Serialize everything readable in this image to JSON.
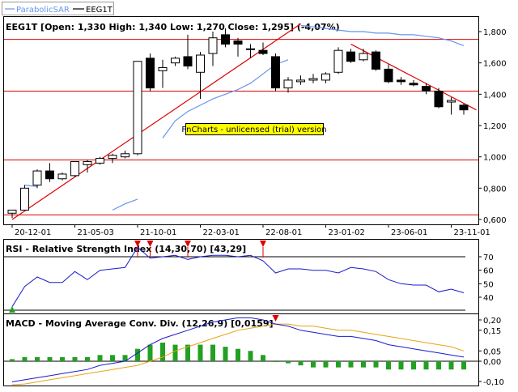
{
  "legend": {
    "sar_label": "ParabolicSAR",
    "price_label": "EEG1T"
  },
  "price_panel": {
    "header": "EEG1T [Open: 1,330  High: 1,340  Low: 1,270  Close: 1,295] (-4,07%)",
    "watermark": "FnCharts - unlicensed (trial) version",
    "y_ticks": [
      "1,800",
      "1,600",
      "1,400",
      "1,200",
      "1,000",
      "0,800",
      "0,600"
    ]
  },
  "rsi_panel": {
    "header": "RSI - Relative Strength Index (14,30,70) [43,29]",
    "y_ticks": [
      "70",
      "60",
      "50",
      "40"
    ]
  },
  "macd_panel": {
    "header": "MACD - Moving Average Conv. Div. (12,26,9) [0,0159]",
    "y_ticks": [
      "0,20",
      "0,15",
      "0,05",
      "0,00",
      "-0,10"
    ]
  },
  "x_ticks": [
    "20-12-01",
    "21-05-03",
    "21-10-01",
    "22-03-01",
    "22-08-01",
    "23-01-02",
    "23-06-01",
    "23-11-01"
  ],
  "colors": {
    "up_candle": "#ffffff",
    "down_candle": "#000000",
    "sar": "#6495ed",
    "trendline": "#e00000",
    "rsi": "#1a1acc",
    "macd": "#1a1acc",
    "signal": "#e8a317",
    "histogram": "#22a022",
    "marker_red": "#e00000",
    "marker_green": "#22a022",
    "watermark_bg": "#ffff00"
  },
  "chart_data": [
    {
      "type": "candlestick",
      "title": "EEG1T",
      "ylim": [
        0.58,
        1.88
      ],
      "x": [
        "2020-12",
        "2021-01",
        "2021-02",
        "2021-03",
        "2021-04",
        "2021-05",
        "2021-06",
        "2021-07",
        "2021-08",
        "2021-09",
        "2021-10",
        "2021-11",
        "2021-12",
        "2022-01",
        "2022-02",
        "2022-03",
        "2022-04",
        "2022-05",
        "2022-06",
        "2022-07",
        "2022-08",
        "2022-09",
        "2022-10",
        "2022-11",
        "2022-12",
        "2023-01",
        "2023-02",
        "2023-03",
        "2023-04",
        "2023-05",
        "2023-06",
        "2023-07",
        "2023-08",
        "2023-09",
        "2023-10",
        "2023-11",
        "2023-12"
      ],
      "candles": [
        {
          "o": 0.64,
          "h": 0.66,
          "l": 0.61,
          "c": 0.66
        },
        {
          "o": 0.66,
          "h": 0.82,
          "l": 0.66,
          "c": 0.8
        },
        {
          "o": 0.82,
          "h": 0.92,
          "l": 0.8,
          "c": 0.91
        },
        {
          "o": 0.91,
          "h": 0.96,
          "l": 0.84,
          "c": 0.86
        },
        {
          "o": 0.86,
          "h": 0.9,
          "l": 0.85,
          "c": 0.89
        },
        {
          "o": 0.88,
          "h": 0.97,
          "l": 0.87,
          "c": 0.97
        },
        {
          "o": 0.95,
          "h": 0.98,
          "l": 0.9,
          "c": 0.97
        },
        {
          "o": 0.96,
          "h": 1.0,
          "l": 0.95,
          "c": 0.99
        },
        {
          "o": 0.99,
          "h": 1.02,
          "l": 0.96,
          "c": 1.01
        },
        {
          "o": 1.0,
          "h": 1.04,
          "l": 0.99,
          "c": 1.02
        },
        {
          "o": 1.02,
          "h": 1.61,
          "l": 1.01,
          "c": 1.61
        },
        {
          "o": 1.63,
          "h": 1.66,
          "l": 1.42,
          "c": 1.44
        },
        {
          "o": 1.55,
          "h": 1.62,
          "l": 1.44,
          "c": 1.57
        },
        {
          "o": 1.6,
          "h": 1.64,
          "l": 1.58,
          "c": 1.63
        },
        {
          "o": 1.64,
          "h": 1.78,
          "l": 1.56,
          "c": 1.58
        },
        {
          "o": 1.54,
          "h": 1.67,
          "l": 1.37,
          "c": 1.65
        },
        {
          "o": 1.66,
          "h": 1.8,
          "l": 1.58,
          "c": 1.76
        },
        {
          "o": 1.78,
          "h": 1.82,
          "l": 1.7,
          "c": 1.72
        },
        {
          "o": 1.74,
          "h": 1.76,
          "l": 1.64,
          "c": 1.72
        },
        {
          "o": 1.69,
          "h": 1.72,
          "l": 1.63,
          "c": 1.69
        },
        {
          "o": 1.68,
          "h": 1.73,
          "l": 1.65,
          "c": 1.66
        },
        {
          "o": 1.64,
          "h": 1.66,
          "l": 1.42,
          "c": 1.44
        },
        {
          "o": 1.44,
          "h": 1.51,
          "l": 1.41,
          "c": 1.49
        },
        {
          "o": 1.48,
          "h": 1.52,
          "l": 1.46,
          "c": 1.49
        },
        {
          "o": 1.49,
          "h": 1.53,
          "l": 1.47,
          "c": 1.5
        },
        {
          "o": 1.49,
          "h": 1.54,
          "l": 1.47,
          "c": 1.53
        },
        {
          "o": 1.54,
          "h": 1.7,
          "l": 1.53,
          "c": 1.68
        },
        {
          "o": 1.67,
          "h": 1.69,
          "l": 1.6,
          "c": 1.61
        },
        {
          "o": 1.62,
          "h": 1.69,
          "l": 1.61,
          "c": 1.66
        },
        {
          "o": 1.67,
          "h": 1.68,
          "l": 1.55,
          "c": 1.56
        },
        {
          "o": 1.56,
          "h": 1.59,
          "l": 1.47,
          "c": 1.48
        },
        {
          "o": 1.49,
          "h": 1.51,
          "l": 1.46,
          "c": 1.48
        },
        {
          "o": 1.47,
          "h": 1.49,
          "l": 1.45,
          "c": 1.46
        },
        {
          "o": 1.45,
          "h": 1.47,
          "l": 1.4,
          "c": 1.42
        },
        {
          "o": 1.42,
          "h": 1.44,
          "l": 1.31,
          "c": 1.32
        },
        {
          "o": 1.35,
          "h": 1.38,
          "l": 1.27,
          "c": 1.36
        },
        {
          "o": 1.33,
          "h": 1.34,
          "l": 1.27,
          "c": 1.3
        }
      ],
      "sar": [
        {
          "x": "2021-01",
          "y": 0.82
        },
        {
          "x": "2021-02",
          "y": 0.81
        },
        {
          "x": "2021-04",
          "y": 0.6
        },
        {
          "x": "2021-06",
          "y": 0.63
        },
        {
          "x": "2021-08",
          "y": 0.66
        },
        {
          "x": "2021-09",
          "y": 0.7
        },
        {
          "x": "2021-10",
          "y": 0.73
        },
        {
          "x": "2021-11",
          "y": 0.96
        },
        {
          "x": "2021-12",
          "y": 1.12
        },
        {
          "x": "2022-01",
          "y": 1.23
        },
        {
          "x": "2022-02",
          "y": 1.29
        },
        {
          "x": "2022-03",
          "y": 1.33
        },
        {
          "x": "2022-04",
          "y": 1.37
        },
        {
          "x": "2022-05",
          "y": 1.4
        },
        {
          "x": "2022-06",
          "y": 1.43
        },
        {
          "x": "2022-07",
          "y": 1.47
        },
        {
          "x": "2022-08",
          "y": 1.53
        },
        {
          "x": "2022-09",
          "y": 1.59
        },
        {
          "x": "2022-10",
          "y": 1.62
        },
        {
          "x": "2022-11",
          "y": 1.84
        },
        {
          "x": "2022-12",
          "y": 1.83
        },
        {
          "x": "2023-01",
          "y": 1.82
        },
        {
          "x": "2023-02",
          "y": 1.81
        },
        {
          "x": "2023-03",
          "y": 1.8
        },
        {
          "x": "2023-04",
          "y": 1.8
        },
        {
          "x": "2023-05",
          "y": 1.79
        },
        {
          "x": "2023-06",
          "y": 1.79
        },
        {
          "x": "2023-07",
          "y": 1.78
        },
        {
          "x": "2023-08",
          "y": 1.78
        },
        {
          "x": "2023-09",
          "y": 1.77
        },
        {
          "x": "2023-10",
          "y": 1.76
        },
        {
          "x": "2023-11",
          "y": 1.74
        },
        {
          "x": "2023-12",
          "y": 1.71
        }
      ],
      "horizontal_lines": [
        1.75,
        1.42,
        0.98,
        0.63
      ],
      "trendlines": [
        {
          "x1": "2020-12",
          "y1": 0.6,
          "x2": "2022-11",
          "y2": 1.85
        },
        {
          "x1": "2023-03",
          "y1": 1.72,
          "x2": "2024-01",
          "y2": 1.3
        }
      ]
    },
    {
      "type": "line",
      "title": "RSI - Relative Strength Index (14,30,70) [43,29]",
      "ylim": [
        33,
        77
      ],
      "levels": [
        70,
        30
      ],
      "x": [
        "2020-12",
        "2021-01",
        "2021-02",
        "2021-03",
        "2021-04",
        "2021-05",
        "2021-06",
        "2021-07",
        "2021-08",
        "2021-09",
        "2021-10",
        "2021-11",
        "2021-12",
        "2022-01",
        "2022-02",
        "2022-03",
        "2022-04",
        "2022-05",
        "2022-06",
        "2022-07",
        "2022-08",
        "2022-09",
        "2022-10",
        "2022-11",
        "2022-12",
        "2023-01",
        "2023-02",
        "2023-03",
        "2023-04",
        "2023-05",
        "2023-06",
        "2023-07",
        "2023-08",
        "2023-09",
        "2023-10",
        "2023-11",
        "2023-12"
      ],
      "values": [
        33,
        48,
        55,
        51,
        51,
        59,
        53,
        60,
        61,
        62,
        77,
        69,
        70,
        71,
        68,
        70,
        71,
        71,
        70,
        71,
        67,
        58,
        61,
        61,
        60,
        60,
        58,
        62,
        61,
        59,
        53,
        50,
        49,
        49,
        44,
        46,
        43.29
      ],
      "overbought_markers": [
        "2021-10",
        "2021-11",
        "2022-02",
        "2022-08"
      ],
      "oversold_markers": [
        "2020-12"
      ]
    },
    {
      "type": "line",
      "title": "MACD - Moving Average Conv. Div. (12,26,9) [0,0159]",
      "ylim": [
        -0.11,
        0.22
      ],
      "x": [
        "2020-12",
        "2021-01",
        "2021-02",
        "2021-03",
        "2021-04",
        "2021-05",
        "2021-06",
        "2021-07",
        "2021-08",
        "2021-09",
        "2021-10",
        "2021-11",
        "2021-12",
        "2022-01",
        "2022-02",
        "2022-03",
        "2022-04",
        "2022-05",
        "2022-06",
        "2022-07",
        "2022-08",
        "2022-09",
        "2022-10",
        "2022-11",
        "2022-12",
        "2023-01",
        "2023-02",
        "2023-03",
        "2023-04",
        "2023-05",
        "2023-06",
        "2023-07",
        "2023-08",
        "2023-09",
        "2023-10",
        "2023-11",
        "2023-12"
      ],
      "series": [
        {
          "name": "MACD",
          "values": [
            -0.1,
            -0.09,
            -0.08,
            -0.07,
            -0.06,
            -0.05,
            -0.04,
            -0.02,
            -0.01,
            0.0,
            0.04,
            0.08,
            0.11,
            0.13,
            0.15,
            0.17,
            0.19,
            0.2,
            0.21,
            0.21,
            0.2,
            0.18,
            0.17,
            0.15,
            0.14,
            0.13,
            0.12,
            0.12,
            0.11,
            0.1,
            0.08,
            0.07,
            0.06,
            0.05,
            0.04,
            0.03,
            0.02
          ]
        },
        {
          "name": "Signal",
          "values": [
            -0.12,
            -0.11,
            -0.1,
            -0.09,
            -0.08,
            -0.07,
            -0.06,
            -0.05,
            -0.04,
            -0.03,
            -0.02,
            0.0,
            0.02,
            0.05,
            0.07,
            0.09,
            0.11,
            0.13,
            0.15,
            0.16,
            0.17,
            0.18,
            0.18,
            0.17,
            0.17,
            0.16,
            0.15,
            0.15,
            0.14,
            0.13,
            0.12,
            0.11,
            0.1,
            0.09,
            0.08,
            0.07,
            0.05
          ]
        },
        {
          "name": "Histogram",
          "type": "bar",
          "values": [
            0.01,
            0.02,
            0.02,
            0.02,
            0.02,
            0.02,
            0.02,
            0.03,
            0.03,
            0.03,
            0.06,
            0.08,
            0.09,
            0.08,
            0.08,
            0.08,
            0.08,
            0.07,
            0.06,
            0.05,
            0.03,
            0.0,
            -0.01,
            -0.02,
            -0.03,
            -0.03,
            -0.03,
            -0.03,
            -0.03,
            -0.03,
            -0.04,
            -0.04,
            -0.04,
            -0.04,
            -0.04,
            -0.04,
            -0.04
          ]
        }
      ],
      "signal_markers": [
        "2022-09"
      ]
    }
  ]
}
